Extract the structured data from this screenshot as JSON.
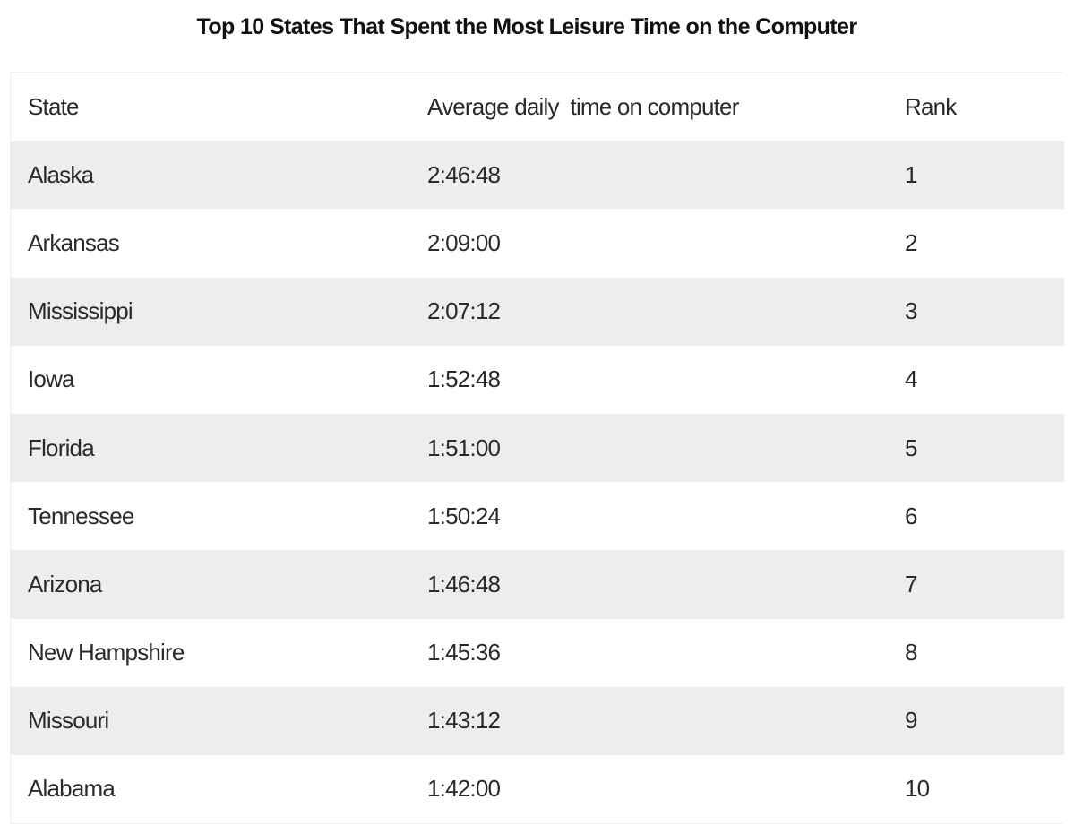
{
  "chart_data": {
    "type": "table",
    "title": "Top 10 States That Spent the Most Leisure Time on the Computer",
    "columns": [
      "State",
      "Average daily  time on computer",
      "Rank"
    ],
    "rows": [
      {
        "state": "Alaska",
        "time": "2:46:48",
        "rank": "1"
      },
      {
        "state": "Arkansas",
        "time": "2:09:00",
        "rank": "2"
      },
      {
        "state": "Mississippi",
        "time": "2:07:12",
        "rank": "3"
      },
      {
        "state": "Iowa",
        "time": "1:52:48",
        "rank": "4"
      },
      {
        "state": "Florida",
        "time": "1:51:00",
        "rank": "5"
      },
      {
        "state": "Tennessee",
        "time": "1:50:24",
        "rank": "6"
      },
      {
        "state": "Arizona",
        "time": "1:46:48",
        "rank": "7"
      },
      {
        "state": "New Hampshire",
        "time": "1:45:36",
        "rank": "8"
      },
      {
        "state": "Missouri",
        "time": "1:43:12",
        "rank": "9"
      },
      {
        "state": "Alabama",
        "time": "1:42:00",
        "rank": "10"
      }
    ]
  },
  "colors": {
    "stripe": "#ededed",
    "background": "#ffffff",
    "text": "#2a2a2a",
    "title": "#111111"
  }
}
